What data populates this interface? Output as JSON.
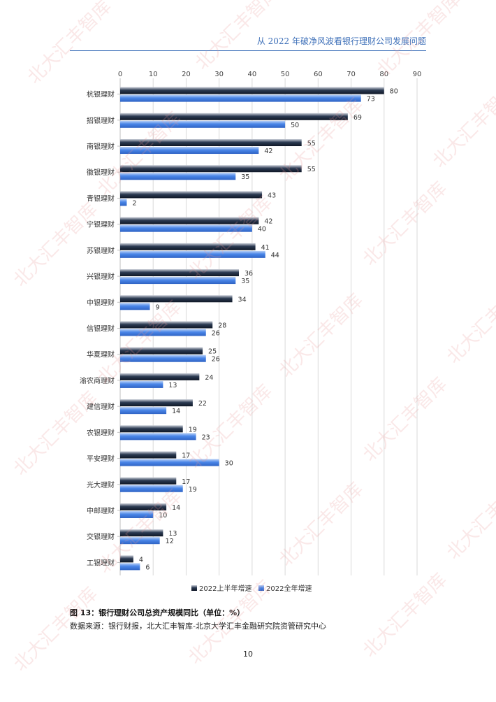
{
  "header": {
    "title": "从 2022 年破净风波看银行理财公司发展问题"
  },
  "figure": {
    "caption": "图 13：银行理财公司总资产规模同比（单位：%）",
    "source": "数据来源：银行财报，北大汇丰智库-北京大学汇丰金融研究院资管研究中心"
  },
  "page_number": "10",
  "watermark_text": "北大汇丰智库",
  "colors": {
    "series1": "#2b3a52",
    "series2": "#4a86e8",
    "grid": "#d9d9d9",
    "header": "#3d6fb8"
  },
  "chart_data": {
    "type": "bar",
    "orientation": "horizontal",
    "categories": [
      "杭银理财",
      "招银理财",
      "南银理财",
      "徽银理财",
      "青银理财",
      "宁银理财",
      "苏银理财",
      "兴银理财",
      "中银理财",
      "信银理财",
      "华夏理财",
      "渝农商理财",
      "建信理财",
      "农银理财",
      "平安理财",
      "光大理财",
      "中邮理财",
      "交银理财",
      "工银理财"
    ],
    "series": [
      {
        "name": "2022上半年增速",
        "values": [
          80,
          69,
          55,
          55,
          43,
          42,
          41,
          36,
          34,
          28,
          25,
          24,
          22,
          19,
          17,
          17,
          14,
          13,
          4
        ]
      },
      {
        "name": "2022全年增速",
        "values": [
          73,
          50,
          42,
          35,
          2,
          40,
          44,
          35,
          9,
          26,
          26,
          13,
          14,
          23,
          30,
          19,
          10,
          12,
          6
        ]
      }
    ],
    "xlim": [
      0,
      90
    ],
    "xticks": [
      "0",
      "10",
      "20",
      "30",
      "40",
      "50",
      "60",
      "70",
      "80",
      "90"
    ],
    "grid": true,
    "legend_position": "bottom"
  }
}
